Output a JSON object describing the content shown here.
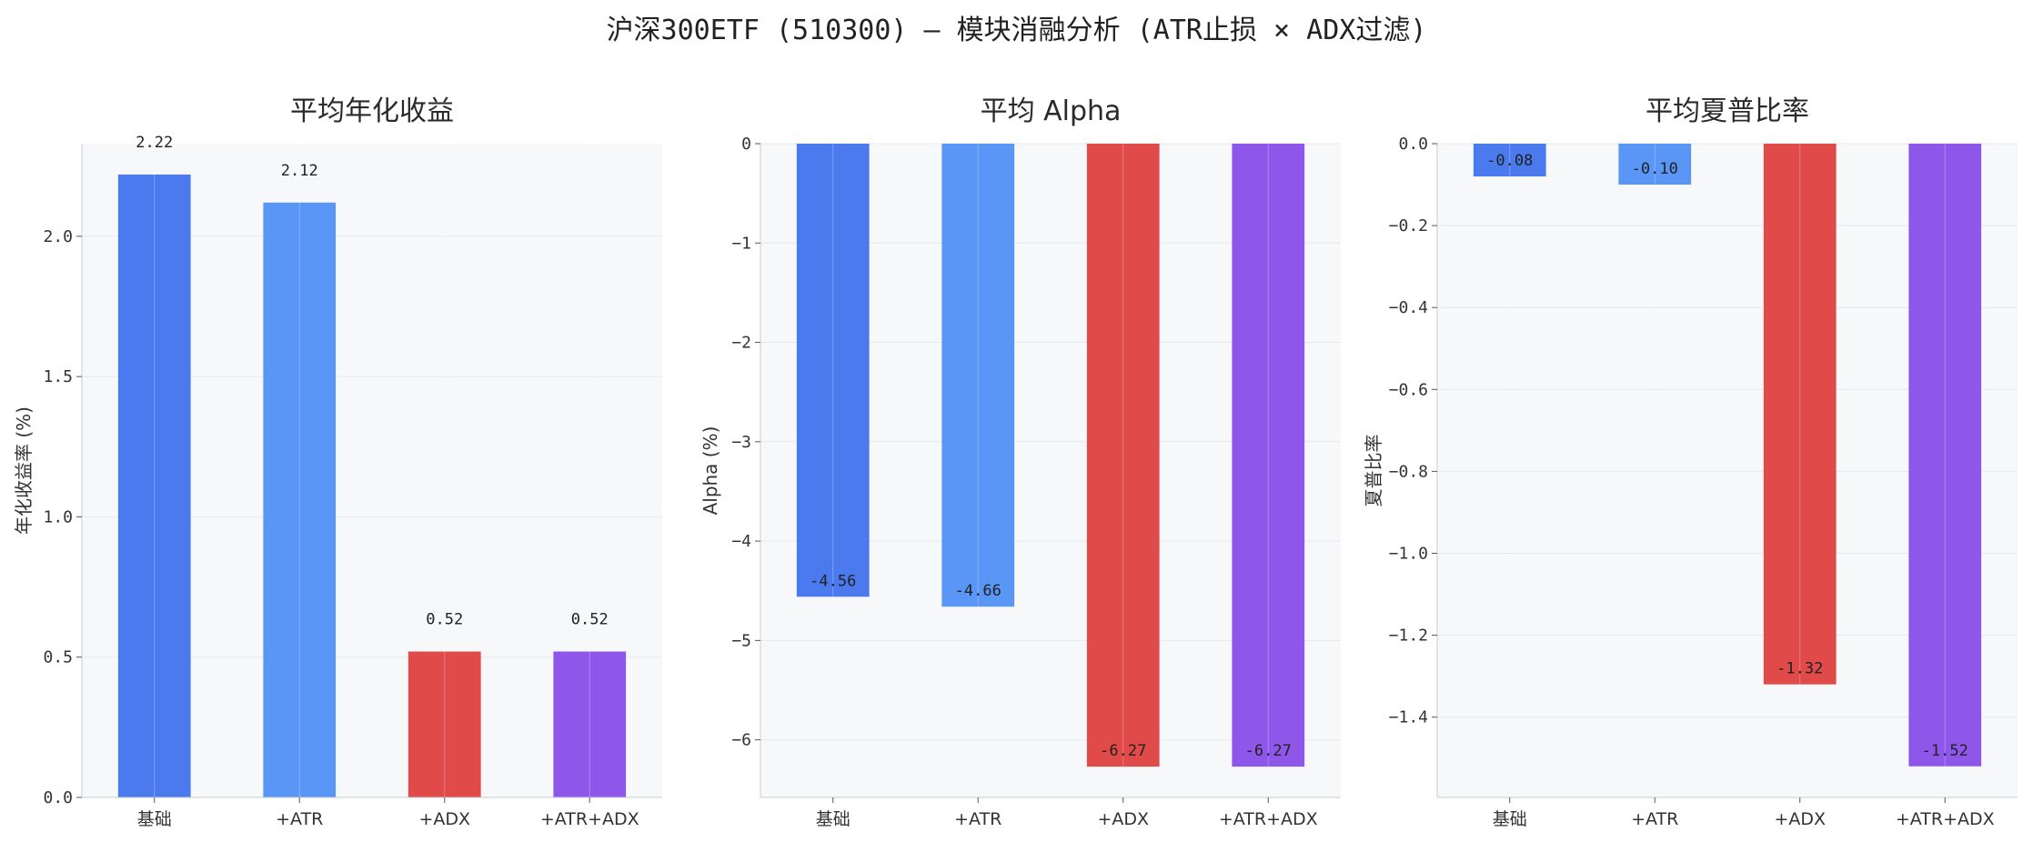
{
  "suptitle": "沪深300ETF (510300) — 模块消融分析 (ATR止损 × ADX过滤)",
  "colors": {
    "background": "#ffffff",
    "plot_background": "#f7f8fa",
    "grid": "#e6e8ec",
    "spine": "#c8ccd2",
    "bar_colors": [
      "#4a7aee",
      "#5996f5",
      "#e04a48",
      "#8e57ea"
    ]
  },
  "chart_data": [
    {
      "type": "bar",
      "title": "平均年化收益",
      "xlabel": "",
      "ylabel": "年化收益率 (%)",
      "categories": [
        "基础",
        "+ATR",
        "+ADX",
        "+ATR+ADX"
      ],
      "values": [
        2.22,
        2.12,
        0.52,
        0.52
      ],
      "value_labels": [
        "2.22",
        "2.12",
        "0.52",
        "0.52"
      ],
      "ylim": [
        0,
        2.33
      ],
      "yticks": [
        0.0,
        0.5,
        1.0,
        1.5,
        2.0
      ],
      "ytick_labels": [
        "0.0",
        "0.5",
        "1.0",
        "1.5",
        "2.0"
      ],
      "grid": true
    },
    {
      "type": "bar",
      "title": "平均 Alpha",
      "xlabel": "",
      "ylabel": "Alpha (%)",
      "categories": [
        "基础",
        "+ATR",
        "+ADX",
        "+ATR+ADX"
      ],
      "values": [
        -4.56,
        -4.66,
        -6.27,
        -6.27
      ],
      "value_labels": [
        "-4.56",
        "-4.66",
        "-6.27",
        "-6.27"
      ],
      "ylim": [
        -6.58,
        0
      ],
      "yticks": [
        0,
        -1,
        -2,
        -3,
        -4,
        -5,
        -6
      ],
      "ytick_labels": [
        "0",
        "−1",
        "−2",
        "−3",
        "−4",
        "−5",
        "−6"
      ],
      "grid": true
    },
    {
      "type": "bar",
      "title": "平均夏普比率",
      "xlabel": "",
      "ylabel": "夏普比率",
      "categories": [
        "基础",
        "+ATR",
        "+ADX",
        "+ATR+ADX"
      ],
      "values": [
        -0.08,
        -0.1,
        -1.32,
        -1.52
      ],
      "value_labels": [
        "-0.08",
        "-0.10",
        "-1.32",
        "-1.52"
      ],
      "ylim": [
        -1.596,
        0
      ],
      "yticks": [
        0.0,
        -0.2,
        -0.4,
        -0.6,
        -0.8,
        -1.0,
        -1.2,
        -1.4
      ],
      "ytick_labels": [
        "0.0",
        "−0.2",
        "−0.4",
        "−0.6",
        "−0.8",
        "−1.0",
        "−1.2",
        "−1.4"
      ],
      "grid": true
    }
  ]
}
